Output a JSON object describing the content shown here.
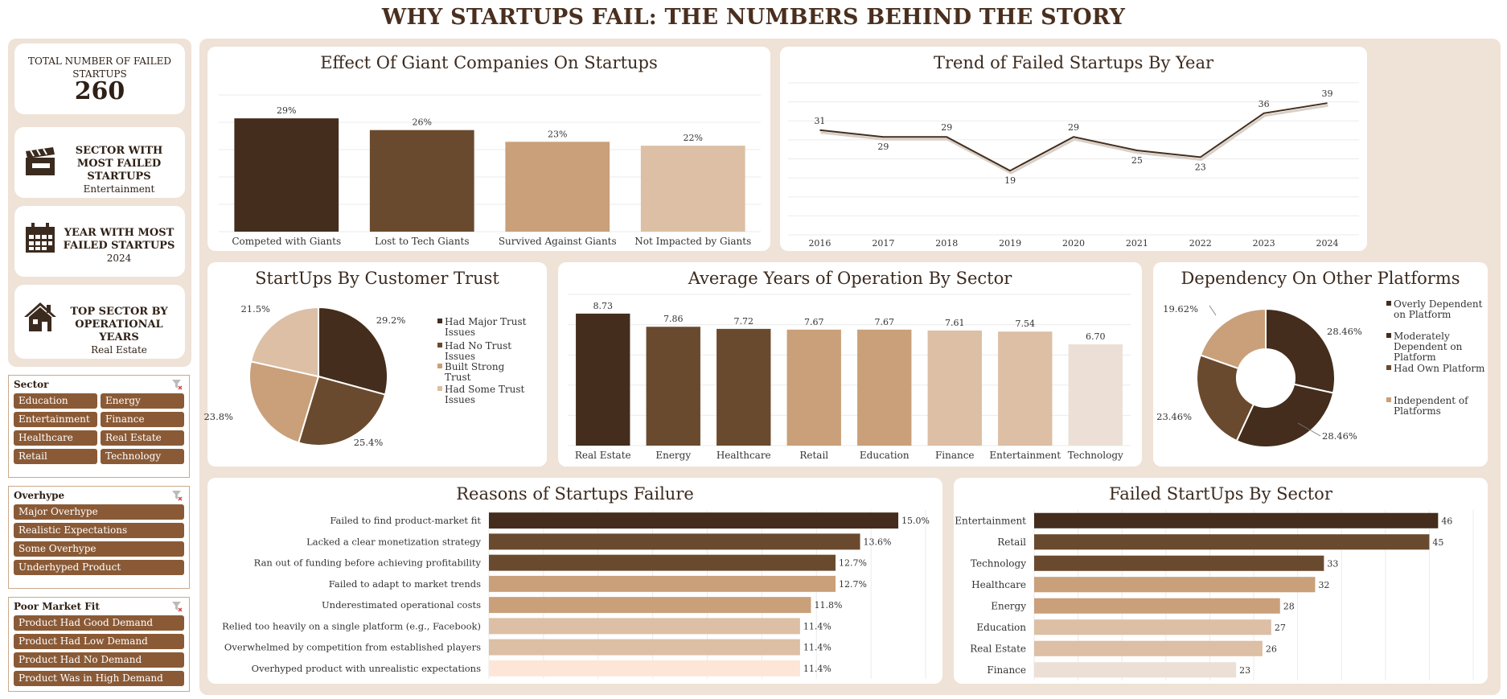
{
  "title": "WHY STARTUPS FAIL: THE NUMBERS BEHIND THE STORY",
  "kpis": {
    "total": {
      "title": "TOTAL NUMBER OF FAILED STARTUPS",
      "value": "260"
    },
    "sector": {
      "title": "SECTOR  WITH MOST FAILED STARTUPS",
      "value": "Entertainment",
      "icon": "clapperboard-icon"
    },
    "year": {
      "title": "YEAR WITH MOST FAILED STARTUPS",
      "value": "2024",
      "icon": "calendar-icon"
    },
    "top_sector": {
      "title": "TOP SECTOR BY OPERATIONAL YEARS",
      "value": "Real Estate",
      "icon": "house-icon"
    }
  },
  "slicers": {
    "sector": {
      "title": "Sector",
      "items": [
        "Education",
        "Energy",
        "Entertainment",
        "Finance",
        "Healthcare",
        "Real Estate",
        "Retail",
        "Technology"
      ]
    },
    "overhype": {
      "title": "Overhype",
      "items": [
        "Major Overhype",
        "Realistic Expectations",
        "Some Overhype",
        "Underhyped Product"
      ]
    },
    "market_fit": {
      "title": "Poor Market Fit",
      "items": [
        "Product Had Good Demand",
        "Product Had Low Demand",
        "Product Had No Demand",
        "Product Was in High Demand"
      ]
    }
  },
  "colors": {
    "c1": "#442d1c",
    "c2": "#6a4a2e",
    "c3": "#c9a07a",
    "c4": "#dcbfa4",
    "c5": "#ece0d6",
    "c6": "#fde6d7",
    "accent": "#8a5a36"
  },
  "chart_data": [
    {
      "id": "giants",
      "type": "bar",
      "title": "Effect Of Giant Companies On Startups",
      "categories": [
        "Competed with Giants",
        "Lost to Tech Giants",
        "Survived Against Giants",
        "Not Impacted by Giants"
      ],
      "values": [
        29,
        26,
        23,
        22
      ],
      "labels": [
        "29%",
        "26%",
        "23%",
        "22%"
      ],
      "ylim": [
        0,
        35
      ]
    },
    {
      "id": "trend",
      "type": "line",
      "title": "Trend of Failed Startups By Year",
      "x": [
        "2016",
        "2017",
        "2018",
        "2019",
        "2020",
        "2021",
        "2022",
        "2023",
        "2024"
      ],
      "values": [
        31,
        29,
        29,
        19,
        29,
        25,
        23,
        36,
        39
      ],
      "ylim": [
        0,
        45
      ]
    },
    {
      "id": "trust",
      "type": "pie",
      "title": "StartUps By Customer Trust",
      "categories": [
        "Had Major Trust Issues",
        "Had No Trust Issues",
        "Built Strong Trust",
        "Had Some Trust Issues"
      ],
      "values": [
        29.2,
        25.4,
        23.8,
        21.5
      ],
      "labels": [
        "29.2%",
        "25.4%",
        "23.8%",
        "21.5%"
      ],
      "legend": "right"
    },
    {
      "id": "years",
      "type": "bar",
      "title": "Average Years of Operation By Sector",
      "categories": [
        "Real Estate",
        "Energy",
        "Healthcare",
        "Retail",
        "Education",
        "Finance",
        "Entertainment",
        "Technology"
      ],
      "values": [
        8.73,
        7.86,
        7.72,
        7.67,
        7.67,
        7.61,
        7.54,
        6.7
      ],
      "labels": [
        "8.73",
        "7.86",
        "7.72",
        "7.67",
        "7.67",
        "7.61",
        "7.54",
        "6.70"
      ],
      "ylim": [
        0,
        10
      ]
    },
    {
      "id": "dependency",
      "type": "pie",
      "title": "Dependency On Other Platforms",
      "categories": [
        "Overly Dependent on Platform",
        "Moderately Dependent on Platform",
        "Had Own Platform",
        "Independent of Platforms"
      ],
      "values": [
        28.46,
        28.46,
        23.46,
        19.62
      ],
      "labels": [
        "28.46%",
        "28.46%",
        "23.46%",
        "19.62%"
      ],
      "donut": true,
      "legend": "right"
    },
    {
      "id": "reasons",
      "type": "bar",
      "orientation": "horizontal",
      "title": "Reasons of Startups Failure",
      "categories": [
        "Failed to find product-market fit",
        "Lacked a clear monetization strategy",
        "Ran out of funding before achieving profitability",
        "Failed to adapt to market trends",
        "Underestimated operational costs",
        "Relied too heavily on a single platform (e.g., Facebook)",
        "Overwhelmed by competition from established players",
        "Overhyped product with unrealistic expectations"
      ],
      "values": [
        15.0,
        13.6,
        12.7,
        12.7,
        11.8,
        11.4,
        11.4,
        11.4
      ],
      "labels": [
        "15.0%",
        "13.6%",
        "12.7%",
        "12.7%",
        "11.8%",
        "11.4%",
        "11.4%",
        "11.4%"
      ],
      "xlim": [
        0,
        16
      ]
    },
    {
      "id": "sectors",
      "type": "bar",
      "orientation": "horizontal",
      "title": "Failed StartUps By Sector",
      "categories": [
        "Entertainment",
        "Retail",
        "Technology",
        "Healthcare",
        "Energy",
        "Education",
        "Real Estate",
        "Finance"
      ],
      "values": [
        46,
        45,
        33,
        32,
        28,
        27,
        26,
        23
      ],
      "labels": [
        "46",
        "45",
        "33",
        "32",
        "28",
        "27",
        "26",
        "23"
      ],
      "xlim": [
        0,
        50
      ]
    }
  ]
}
